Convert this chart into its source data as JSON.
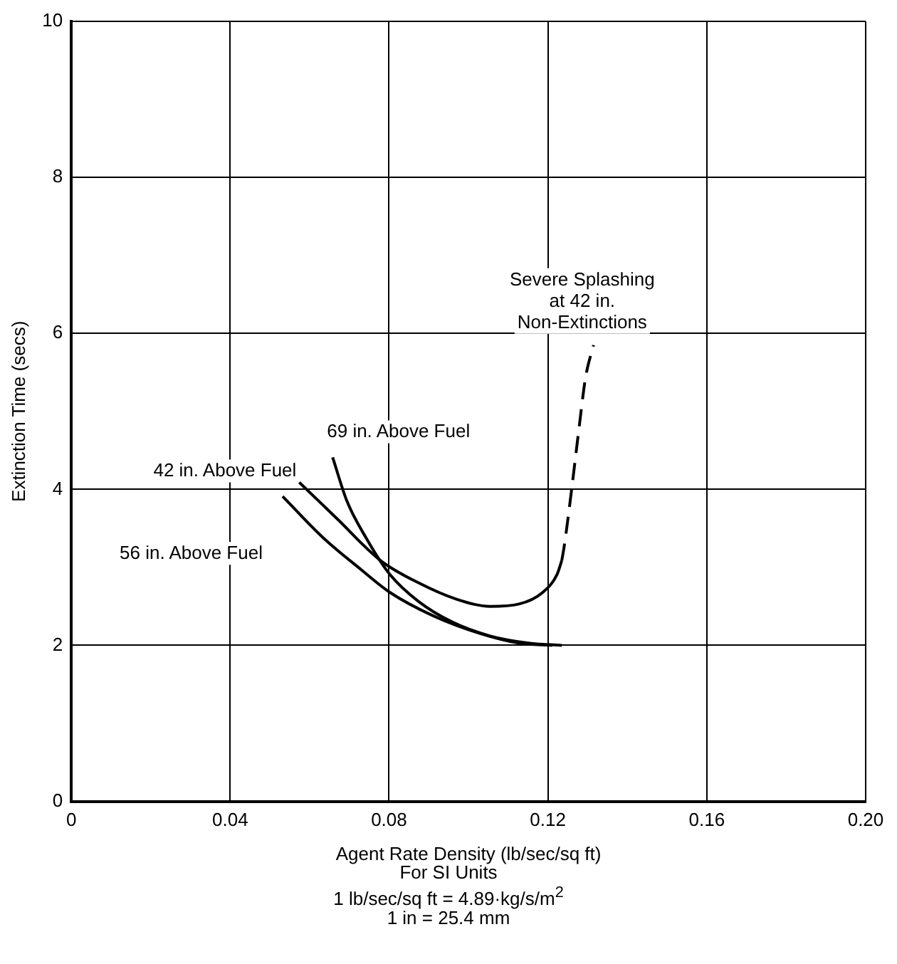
{
  "chart_data": {
    "type": "line",
    "xlabel": "Agent Rate Density (lb/sec/sq ft)",
    "ylabel": "Extinction Time (secs)",
    "xlim": [
      0,
      0.2
    ],
    "xticks": [
      0,
      0.04,
      0.08,
      0.12,
      0.16,
      {
        "value": 0.2,
        "label": "0.20"
      }
    ],
    "ylim": [
      0,
      10
    ],
    "yticks": [
      0,
      2,
      4,
      6,
      8,
      10
    ],
    "grid": true,
    "legend": false,
    "marker": "none",
    "series": [
      {
        "name": "42 in. Above Fuel",
        "color": "#000000",
        "x": [
          0.0574,
          0.067,
          0.0778,
          0.0875,
          0.0971,
          0.1055,
          0.1127,
          0.1187,
          0.1223,
          0.1235
        ],
        "values": [
          4.09,
          3.62,
          3.09,
          2.8,
          2.59,
          2.5,
          2.53,
          2.68,
          2.91,
          3.09
        ]
      },
      {
        "color": "#000000",
        "line_style": "dashed",
        "x": [
          0.1235,
          0.1241,
          0.1259,
          0.1277,
          0.1295,
          0.1315
        ],
        "values": [
          3.09,
          3.27,
          3.97,
          4.73,
          5.44,
          5.85
        ]
      },
      {
        "name": "56 in. Above Fuel",
        "color": "#000000",
        "x": [
          0.0532,
          0.0634,
          0.073,
          0.0802,
          0.0911,
          0.1031,
          0.1127,
          0.1211
        ],
        "values": [
          3.91,
          3.38,
          2.97,
          2.68,
          2.38,
          2.15,
          2.03,
          2.0
        ]
      },
      {
        "name": "69 in. Above Fuel",
        "color": "#000000",
        "x": [
          0.0658,
          0.0694,
          0.0742,
          0.0802,
          0.0875,
          0.0959,
          0.1055,
          0.1151,
          0.1235
        ],
        "values": [
          4.41,
          3.85,
          3.38,
          2.91,
          2.56,
          2.3,
          2.12,
          2.03,
          2.0
        ]
      }
    ],
    "annotations": [
      {
        "text": "Severe Splashing\nat 42 in.\nNon-Extinctions",
        "x": 0.1315,
        "y": 5.85
      },
      "For SI Units",
      "1 lb/sec/sq ft = 4.89·kg/s/m$^{2}$",
      "1 in = 25.4 mm"
    ]
  }
}
